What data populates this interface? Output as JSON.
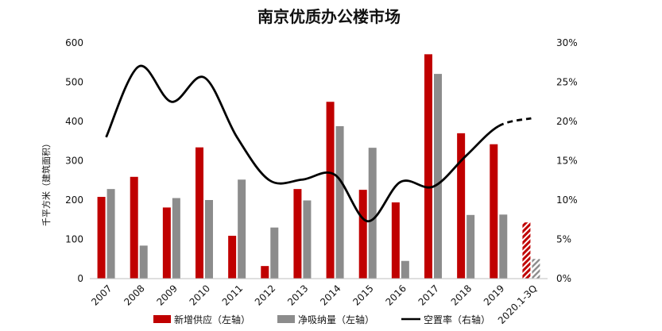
{
  "chart_data": {
    "type": "bar",
    "title": "南京优质办公楼市场",
    "ylabel": "千平方米（建筑面积）",
    "categories": [
      "2007",
      "2008",
      "2009",
      "2010",
      "2011",
      "2012",
      "2013",
      "2014",
      "2015",
      "2016",
      "2017",
      "2018",
      "2019",
      "2020.1-3Q"
    ],
    "ylim": [
      0,
      600
    ],
    "y2lim": [
      0,
      30
    ],
    "y_ticks": [
      "0",
      "100",
      "200",
      "300",
      "400",
      "500",
      "600"
    ],
    "y2_ticks": [
      "0%",
      "5%",
      "10%",
      "15%",
      "20%",
      "25%",
      "30%"
    ],
    "series": [
      {
        "name": "新增供应（左轴）",
        "axis": "left",
        "type": "bar",
        "color": "#c00000",
        "values": [
          208,
          259,
          181,
          334,
          109,
          32,
          228,
          450,
          226,
          194,
          571,
          370,
          342,
          143
        ],
        "hatched_last": true
      },
      {
        "name": "净吸纳量（左轴）",
        "axis": "left",
        "type": "bar",
        "color": "#8c8c8c",
        "values": [
          228,
          84,
          205,
          200,
          252,
          130,
          199,
          388,
          333,
          45,
          521,
          162,
          163,
          50
        ],
        "hatched_last": true
      },
      {
        "name": "空置率（右轴）",
        "axis": "right",
        "type": "line",
        "color": "#000000",
        "values": [
          18.0,
          27.0,
          22.5,
          25.6,
          18.0,
          12.5,
          12.6,
          13.2,
          7.3,
          12.3,
          11.7,
          15.6,
          19.4,
          20.4
        ],
        "dashed_last": true
      }
    ],
    "legend": "bottom",
    "grid": false
  }
}
